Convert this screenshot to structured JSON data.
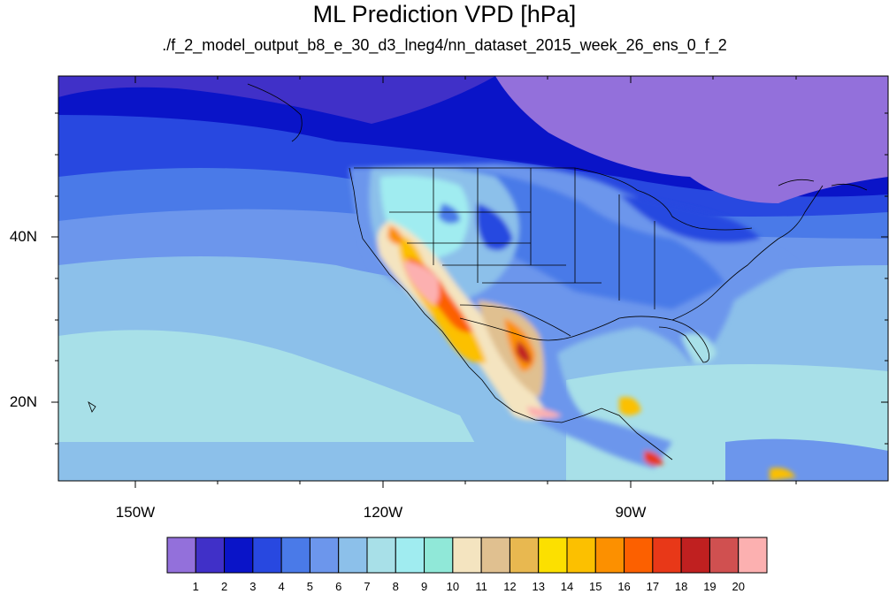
{
  "title": "ML Prediction VPD [hPa]",
  "subtitle": "./f_2_model_output_b8_e_30_d3_lneg4/nn_dataset_2015_week_26_ens_0_f_2",
  "lon_labels": [
    "150W",
    "120W",
    "90W"
  ],
  "lat_labels": [
    "40N",
    "20N"
  ],
  "colorbar": {
    "labels": [
      "1",
      "2",
      "3",
      "4",
      "5",
      "6",
      "7",
      "8",
      "9",
      "10",
      "11",
      "12",
      "13",
      "14",
      "15",
      "16",
      "17",
      "18",
      "19",
      "20"
    ],
    "colors": [
      "#9370db",
      "#4030c8",
      "#0a14c8",
      "#2848e0",
      "#4a7ae8",
      "#6c96ec",
      "#8cc0ea",
      "#a8e0e8",
      "#a0ecf0",
      "#90e8d8",
      "#f4e4c0",
      "#e0c090",
      "#e8b850",
      "#fce000",
      "#fcc000",
      "#fc9000",
      "#fc6000",
      "#e83818",
      "#c02020",
      "#d05050",
      "#fcb0b0"
    ]
  }
}
